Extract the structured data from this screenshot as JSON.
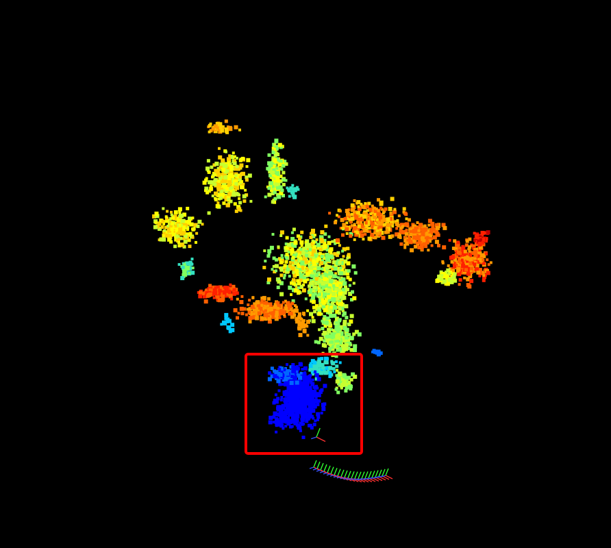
{
  "scene": {
    "background": "#000000",
    "palette": [
      "#0000ff",
      "#0066ff",
      "#00c8ff",
      "#33e0c0",
      "#80ff60",
      "#c8ff30",
      "#ffff00",
      "#ffd000",
      "#ff9a00",
      "#ff6000",
      "#ff2000",
      "#c00000"
    ],
    "highlight_color": "#ff0000",
    "axis_colors": {
      "x": "#ff3030",
      "y": "#30ff30",
      "z": "#3050ff"
    }
  }
}
